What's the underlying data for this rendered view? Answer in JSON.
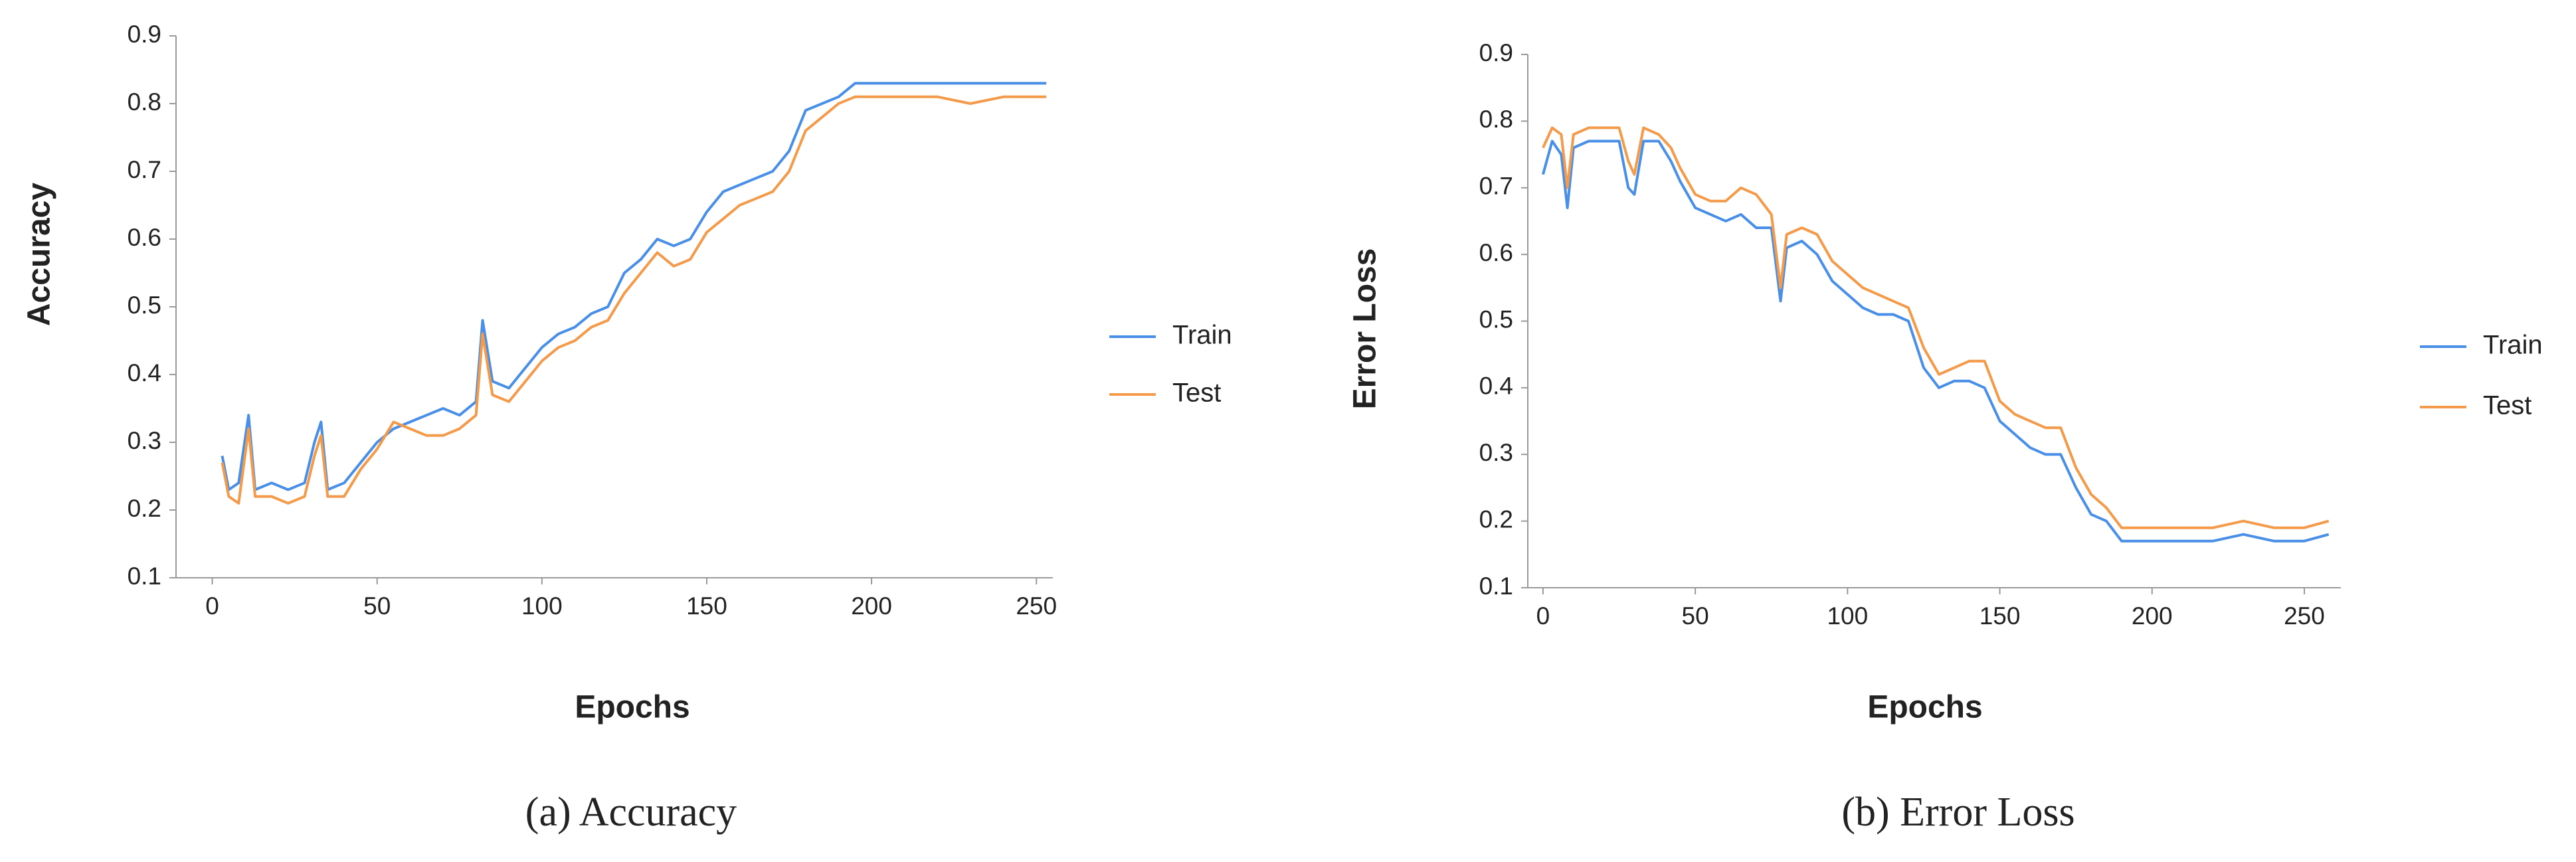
{
  "chart_data": [
    {
      "type": "line",
      "caption": "(a) Accuracy",
      "y_label": "Accuracy",
      "x_label": "Epochs",
      "xlim": [
        -11,
        255
      ],
      "xticks": [
        0,
        50,
        100,
        150,
        200,
        250
      ],
      "ylim": [
        0.1,
        0.9
      ],
      "yticks": [
        0.1,
        0.2,
        0.3,
        0.4,
        0.5,
        0.6,
        0.7,
        0.8,
        0.9
      ],
      "grid": false,
      "legend": "right",
      "x": [
        3,
        5,
        8,
        11,
        13,
        18,
        23,
        28,
        31,
        33,
        35,
        40,
        45,
        50,
        55,
        60,
        65,
        70,
        75,
        80,
        82,
        85,
        90,
        95,
        100,
        105,
        110,
        115,
        120,
        125,
        130,
        135,
        140,
        145,
        150,
        155,
        160,
        165,
        170,
        175,
        180,
        185,
        190,
        195,
        200,
        210,
        220,
        230,
        240,
        250,
        253
      ],
      "series": [
        {
          "name": "Train",
          "color": "#4a8fe7",
          "values": [
            0.28,
            0.23,
            0.24,
            0.34,
            0.23,
            0.24,
            0.23,
            0.24,
            0.3,
            0.33,
            0.23,
            0.24,
            0.27,
            0.3,
            0.32,
            0.33,
            0.34,
            0.35,
            0.34,
            0.36,
            0.48,
            0.39,
            0.38,
            0.41,
            0.44,
            0.46,
            0.47,
            0.49,
            0.5,
            0.55,
            0.57,
            0.6,
            0.59,
            0.6,
            0.64,
            0.67,
            0.68,
            0.69,
            0.7,
            0.73,
            0.79,
            0.8,
            0.81,
            0.83,
            0.83,
            0.83,
            0.83,
            0.83,
            0.83,
            0.83,
            0.83
          ]
        },
        {
          "name": "Test",
          "color": "#f39a4b",
          "values": [
            0.27,
            0.22,
            0.21,
            0.32,
            0.22,
            0.22,
            0.21,
            0.22,
            0.28,
            0.31,
            0.22,
            0.22,
            0.26,
            0.29,
            0.33,
            0.32,
            0.31,
            0.31,
            0.32,
            0.34,
            0.46,
            0.37,
            0.36,
            0.39,
            0.42,
            0.44,
            0.45,
            0.47,
            0.48,
            0.52,
            0.55,
            0.58,
            0.56,
            0.57,
            0.61,
            0.63,
            0.65,
            0.66,
            0.67,
            0.7,
            0.76,
            0.78,
            0.8,
            0.81,
            0.81,
            0.81,
            0.81,
            0.8,
            0.81,
            0.81,
            0.81
          ]
        }
      ]
    },
    {
      "type": "line",
      "caption": "(b) Error Loss",
      "y_label": "Error Loss",
      "x_label": "Epochs",
      "xlim": [
        -5,
        262
      ],
      "xticks": [
        0,
        50,
        100,
        150,
        200,
        250
      ],
      "ylim": [
        0.1,
        0.9
      ],
      "yticks": [
        0.1,
        0.2,
        0.3,
        0.4,
        0.5,
        0.6,
        0.7,
        0.8,
        0.9
      ],
      "grid": false,
      "legend": "right",
      "x": [
        0,
        3,
        6,
        8,
        10,
        15,
        20,
        25,
        28,
        30,
        33,
        38,
        42,
        45,
        50,
        55,
        60,
        65,
        70,
        75,
        78,
        80,
        85,
        90,
        95,
        100,
        105,
        110,
        115,
        120,
        125,
        130,
        135,
        140,
        145,
        150,
        155,
        160,
        165,
        170,
        175,
        180,
        185,
        190,
        195,
        200,
        210,
        220,
        230,
        240,
        250,
        258
      ],
      "series": [
        {
          "name": "Train",
          "color": "#4a8fe7",
          "values": [
            0.72,
            0.77,
            0.75,
            0.67,
            0.76,
            0.77,
            0.77,
            0.77,
            0.7,
            0.69,
            0.77,
            0.77,
            0.74,
            0.71,
            0.67,
            0.66,
            0.65,
            0.66,
            0.64,
            0.64,
            0.53,
            0.61,
            0.62,
            0.6,
            0.56,
            0.54,
            0.52,
            0.51,
            0.51,
            0.5,
            0.43,
            0.4,
            0.41,
            0.41,
            0.4,
            0.35,
            0.33,
            0.31,
            0.3,
            0.3,
            0.25,
            0.21,
            0.2,
            0.17,
            0.17,
            0.17,
            0.17,
            0.17,
            0.18,
            0.17,
            0.17,
            0.18
          ]
        },
        {
          "name": "Test",
          "color": "#f39a4b",
          "values": [
            0.76,
            0.79,
            0.78,
            0.7,
            0.78,
            0.79,
            0.79,
            0.79,
            0.74,
            0.72,
            0.79,
            0.78,
            0.76,
            0.73,
            0.69,
            0.68,
            0.68,
            0.7,
            0.69,
            0.66,
            0.55,
            0.63,
            0.64,
            0.63,
            0.59,
            0.57,
            0.55,
            0.54,
            0.53,
            0.52,
            0.46,
            0.42,
            0.43,
            0.44,
            0.44,
            0.38,
            0.36,
            0.35,
            0.34,
            0.34,
            0.28,
            0.24,
            0.22,
            0.19,
            0.19,
            0.19,
            0.19,
            0.19,
            0.2,
            0.19,
            0.19,
            0.2
          ]
        }
      ]
    }
  ]
}
